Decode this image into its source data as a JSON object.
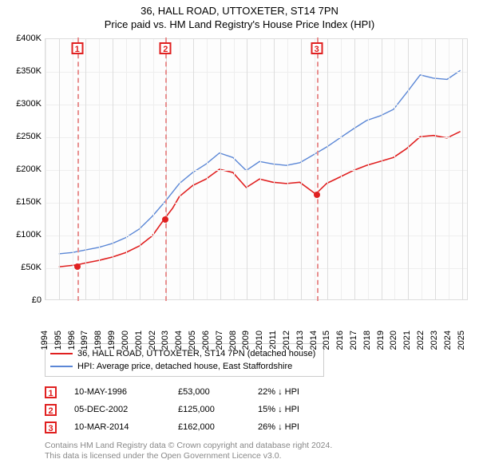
{
  "title": "36, HALL ROAD, UTTOXETER, ST14 7PN",
  "subtitle": "Price paid vs. HM Land Registry's House Price Index (HPI)",
  "chart": {
    "type": "line",
    "background_color": "#fdfdfd",
    "grid_color": "#eeeeee",
    "grid_color_dark": "#dddddd",
    "x_years": [
      1994,
      1995,
      1996,
      1997,
      1998,
      1999,
      2000,
      2001,
      2002,
      2003,
      2004,
      2005,
      2006,
      2007,
      2008,
      2009,
      2010,
      2011,
      2012,
      2013,
      2014,
      2015,
      2016,
      2017,
      2018,
      2019,
      2020,
      2021,
      2022,
      2023,
      2024,
      2025
    ],
    "xlim": [
      1994,
      2025.5
    ],
    "ylim": [
      0,
      400000
    ],
    "ytick_step": 50000,
    "ytick_labels": [
      "£0",
      "£50K",
      "£100K",
      "£150K",
      "£200K",
      "£250K",
      "£300K",
      "£350K",
      "£400K"
    ],
    "series": [
      {
        "name": "property",
        "label": "36, HALL ROAD, UTTOXETER, ST14 7PN (detached house)",
        "color": "#e02020",
        "line_width": 1.6,
        "data": [
          [
            1995.0,
            50000
          ],
          [
            1996.36,
            53000
          ],
          [
            1997,
            56000
          ],
          [
            1998,
            60000
          ],
          [
            1999,
            65000
          ],
          [
            2000,
            72000
          ],
          [
            2001,
            82000
          ],
          [
            2002,
            98000
          ],
          [
            2002.93,
            125000
          ],
          [
            2003.5,
            140000
          ],
          [
            2004,
            158000
          ],
          [
            2005,
            175000
          ],
          [
            2006,
            185000
          ],
          [
            2007,
            200000
          ],
          [
            2008,
            195000
          ],
          [
            2009,
            172000
          ],
          [
            2010,
            185000
          ],
          [
            2011,
            180000
          ],
          [
            2012,
            178000
          ],
          [
            2013,
            180000
          ],
          [
            2014.19,
            162000
          ],
          [
            2015,
            178000
          ],
          [
            2016,
            188000
          ],
          [
            2017,
            198000
          ],
          [
            2018,
            206000
          ],
          [
            2019,
            212000
          ],
          [
            2020,
            218000
          ],
          [
            2021,
            232000
          ],
          [
            2022,
            250000
          ],
          [
            2023,
            252000
          ],
          [
            2024,
            248000
          ],
          [
            2025,
            258000
          ]
        ]
      },
      {
        "name": "hpi",
        "label": "HPI: Average price, detached house, East Staffordshire",
        "color": "#5b87d6",
        "line_width": 1.4,
        "data": [
          [
            1995.0,
            70000
          ],
          [
            1996,
            72000
          ],
          [
            1997,
            76000
          ],
          [
            1998,
            80000
          ],
          [
            1999,
            86000
          ],
          [
            2000,
            95000
          ],
          [
            2001,
            108000
          ],
          [
            2002,
            128000
          ],
          [
            2003,
            152000
          ],
          [
            2004,
            178000
          ],
          [
            2005,
            195000
          ],
          [
            2006,
            208000
          ],
          [
            2007,
            225000
          ],
          [
            2008,
            218000
          ],
          [
            2009,
            198000
          ],
          [
            2010,
            212000
          ],
          [
            2011,
            208000
          ],
          [
            2012,
            206000
          ],
          [
            2013,
            210000
          ],
          [
            2014,
            222000
          ],
          [
            2015,
            234000
          ],
          [
            2016,
            248000
          ],
          [
            2017,
            262000
          ],
          [
            2018,
            275000
          ],
          [
            2019,
            282000
          ],
          [
            2020,
            292000
          ],
          [
            2021,
            318000
          ],
          [
            2022,
            345000
          ],
          [
            2023,
            340000
          ],
          [
            2024,
            338000
          ],
          [
            2025,
            352000
          ]
        ]
      }
    ],
    "sale_markers": [
      {
        "id": "1",
        "x": 1996.36,
        "y": 53000,
        "color": "#e02020"
      },
      {
        "id": "2",
        "x": 2002.93,
        "y": 125000,
        "color": "#e02020"
      },
      {
        "id": "3",
        "x": 2014.19,
        "y": 162000,
        "color": "#e02020"
      }
    ],
    "marker_line_color": "#e89090"
  },
  "legend": {
    "items": [
      {
        "color": "#e02020",
        "label": "36, HALL ROAD, UTTOXETER, ST14 7PN (detached house)"
      },
      {
        "color": "#5b87d6",
        "label": "HPI: Average price, detached house, East Staffordshire"
      }
    ]
  },
  "events": [
    {
      "id": "1",
      "date": "10-MAY-1996",
      "price": "£53,000",
      "diff": "22% ↓ HPI",
      "color": "#e02020"
    },
    {
      "id": "2",
      "date": "05-DEC-2002",
      "price": "£125,000",
      "diff": "15% ↓ HPI",
      "color": "#e02020"
    },
    {
      "id": "3",
      "date": "10-MAR-2014",
      "price": "£162,000",
      "diff": "26% ↓ HPI",
      "color": "#e02020"
    }
  ],
  "footer": {
    "line1": "Contains HM Land Registry data © Crown copyright and database right 2024.",
    "line2": "This data is licensed under the Open Government Licence v3.0."
  }
}
